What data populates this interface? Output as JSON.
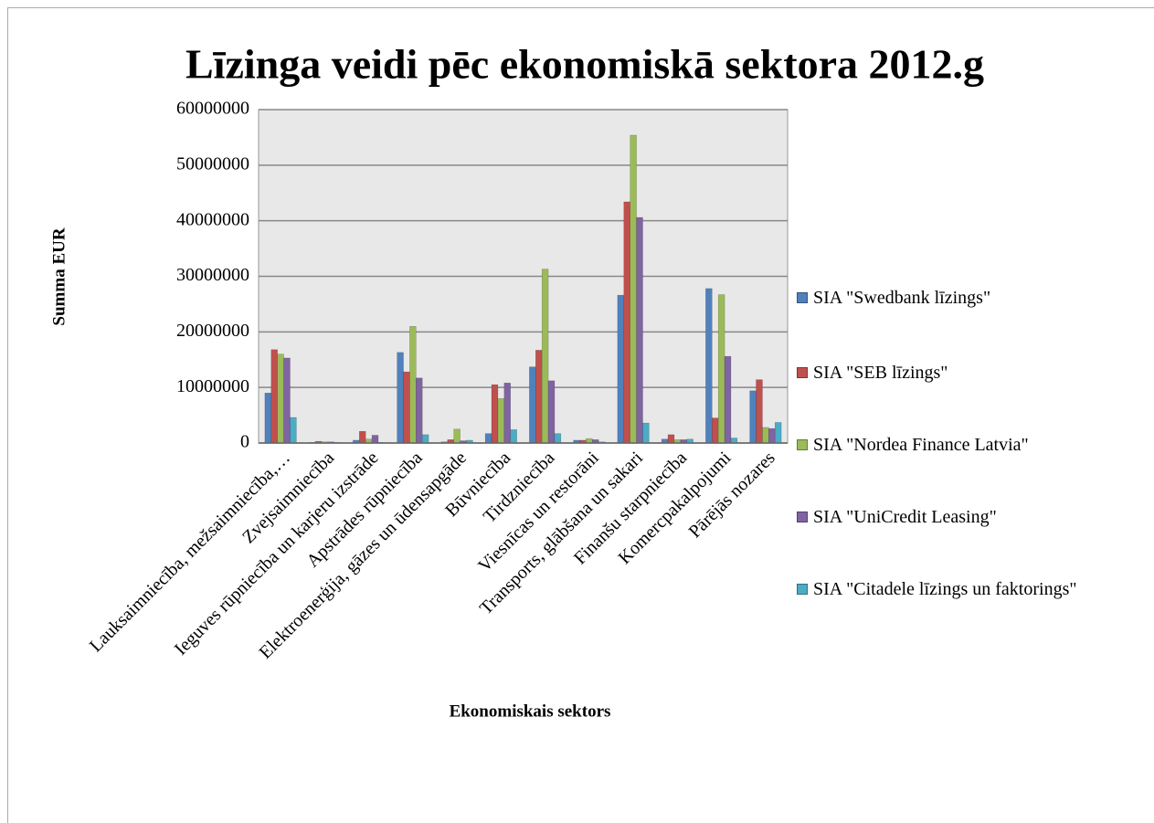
{
  "chart_data": {
    "type": "bar",
    "title": "Līzinga veidi pēc ekonomiskā sektora 2012.g",
    "y_label": "Summa EUR",
    "x_label": "Ekonomiskais sektors",
    "categories": [
      "Lauksaimniecība, mežsaimniecība,…",
      "Zvejsaimniecība",
      "Ieguves rūpniecība un karjeru izstrāde",
      "Apstrādes rūpniecība",
      "Elektroenerģija, gāzes un ūdensapgāde",
      "Būvniecība",
      "Tirdzniecība",
      "Viesnīcas un restorāni",
      "Transports, glābšana un sakari",
      "Finanšu starpniecība",
      "Komercpakalpojumi",
      "Pārējās nozares"
    ],
    "series": [
      {
        "name": "SIA \"Swedbank līzings\"",
        "color": "#4f81bd",
        "values": [
          9000000,
          100000,
          500000,
          16300000,
          200000,
          1700000,
          13700000,
          500000,
          26600000,
          700000,
          27800000,
          9400000
        ]
      },
      {
        "name": "SIA \"SEB līzings\"",
        "color": "#c0504d",
        "values": [
          16800000,
          300000,
          2100000,
          12800000,
          600000,
          10500000,
          16700000,
          500000,
          43400000,
          1500000,
          4500000,
          11400000
        ]
      },
      {
        "name": "SIA \"Nordea Finance Latvia\"",
        "color": "#9bbb59",
        "values": [
          16000000,
          200000,
          700000,
          21000000,
          2500000,
          8000000,
          31300000,
          800000,
          55400000,
          600000,
          26700000,
          2800000
        ]
      },
      {
        "name": "SIA \"UniCredit Leasing\"",
        "color": "#8064a2",
        "values": [
          15300000,
          200000,
          1400000,
          11700000,
          400000,
          10800000,
          11200000,
          600000,
          40600000,
          600000,
          15600000,
          2600000
        ]
      },
      {
        "name": "SIA \"Citadele līzings un faktorings\"",
        "color": "#4bacc6",
        "values": [
          4600000,
          100000,
          100000,
          1500000,
          500000,
          2400000,
          1700000,
          200000,
          3600000,
          700000,
          900000,
          3700000
        ]
      }
    ],
    "ylim": [
      0,
      60000000
    ],
    "yticks": [
      0,
      10000000,
      20000000,
      30000000,
      40000000,
      50000000,
      60000000
    ],
    "grid": true,
    "legend": "right"
  }
}
